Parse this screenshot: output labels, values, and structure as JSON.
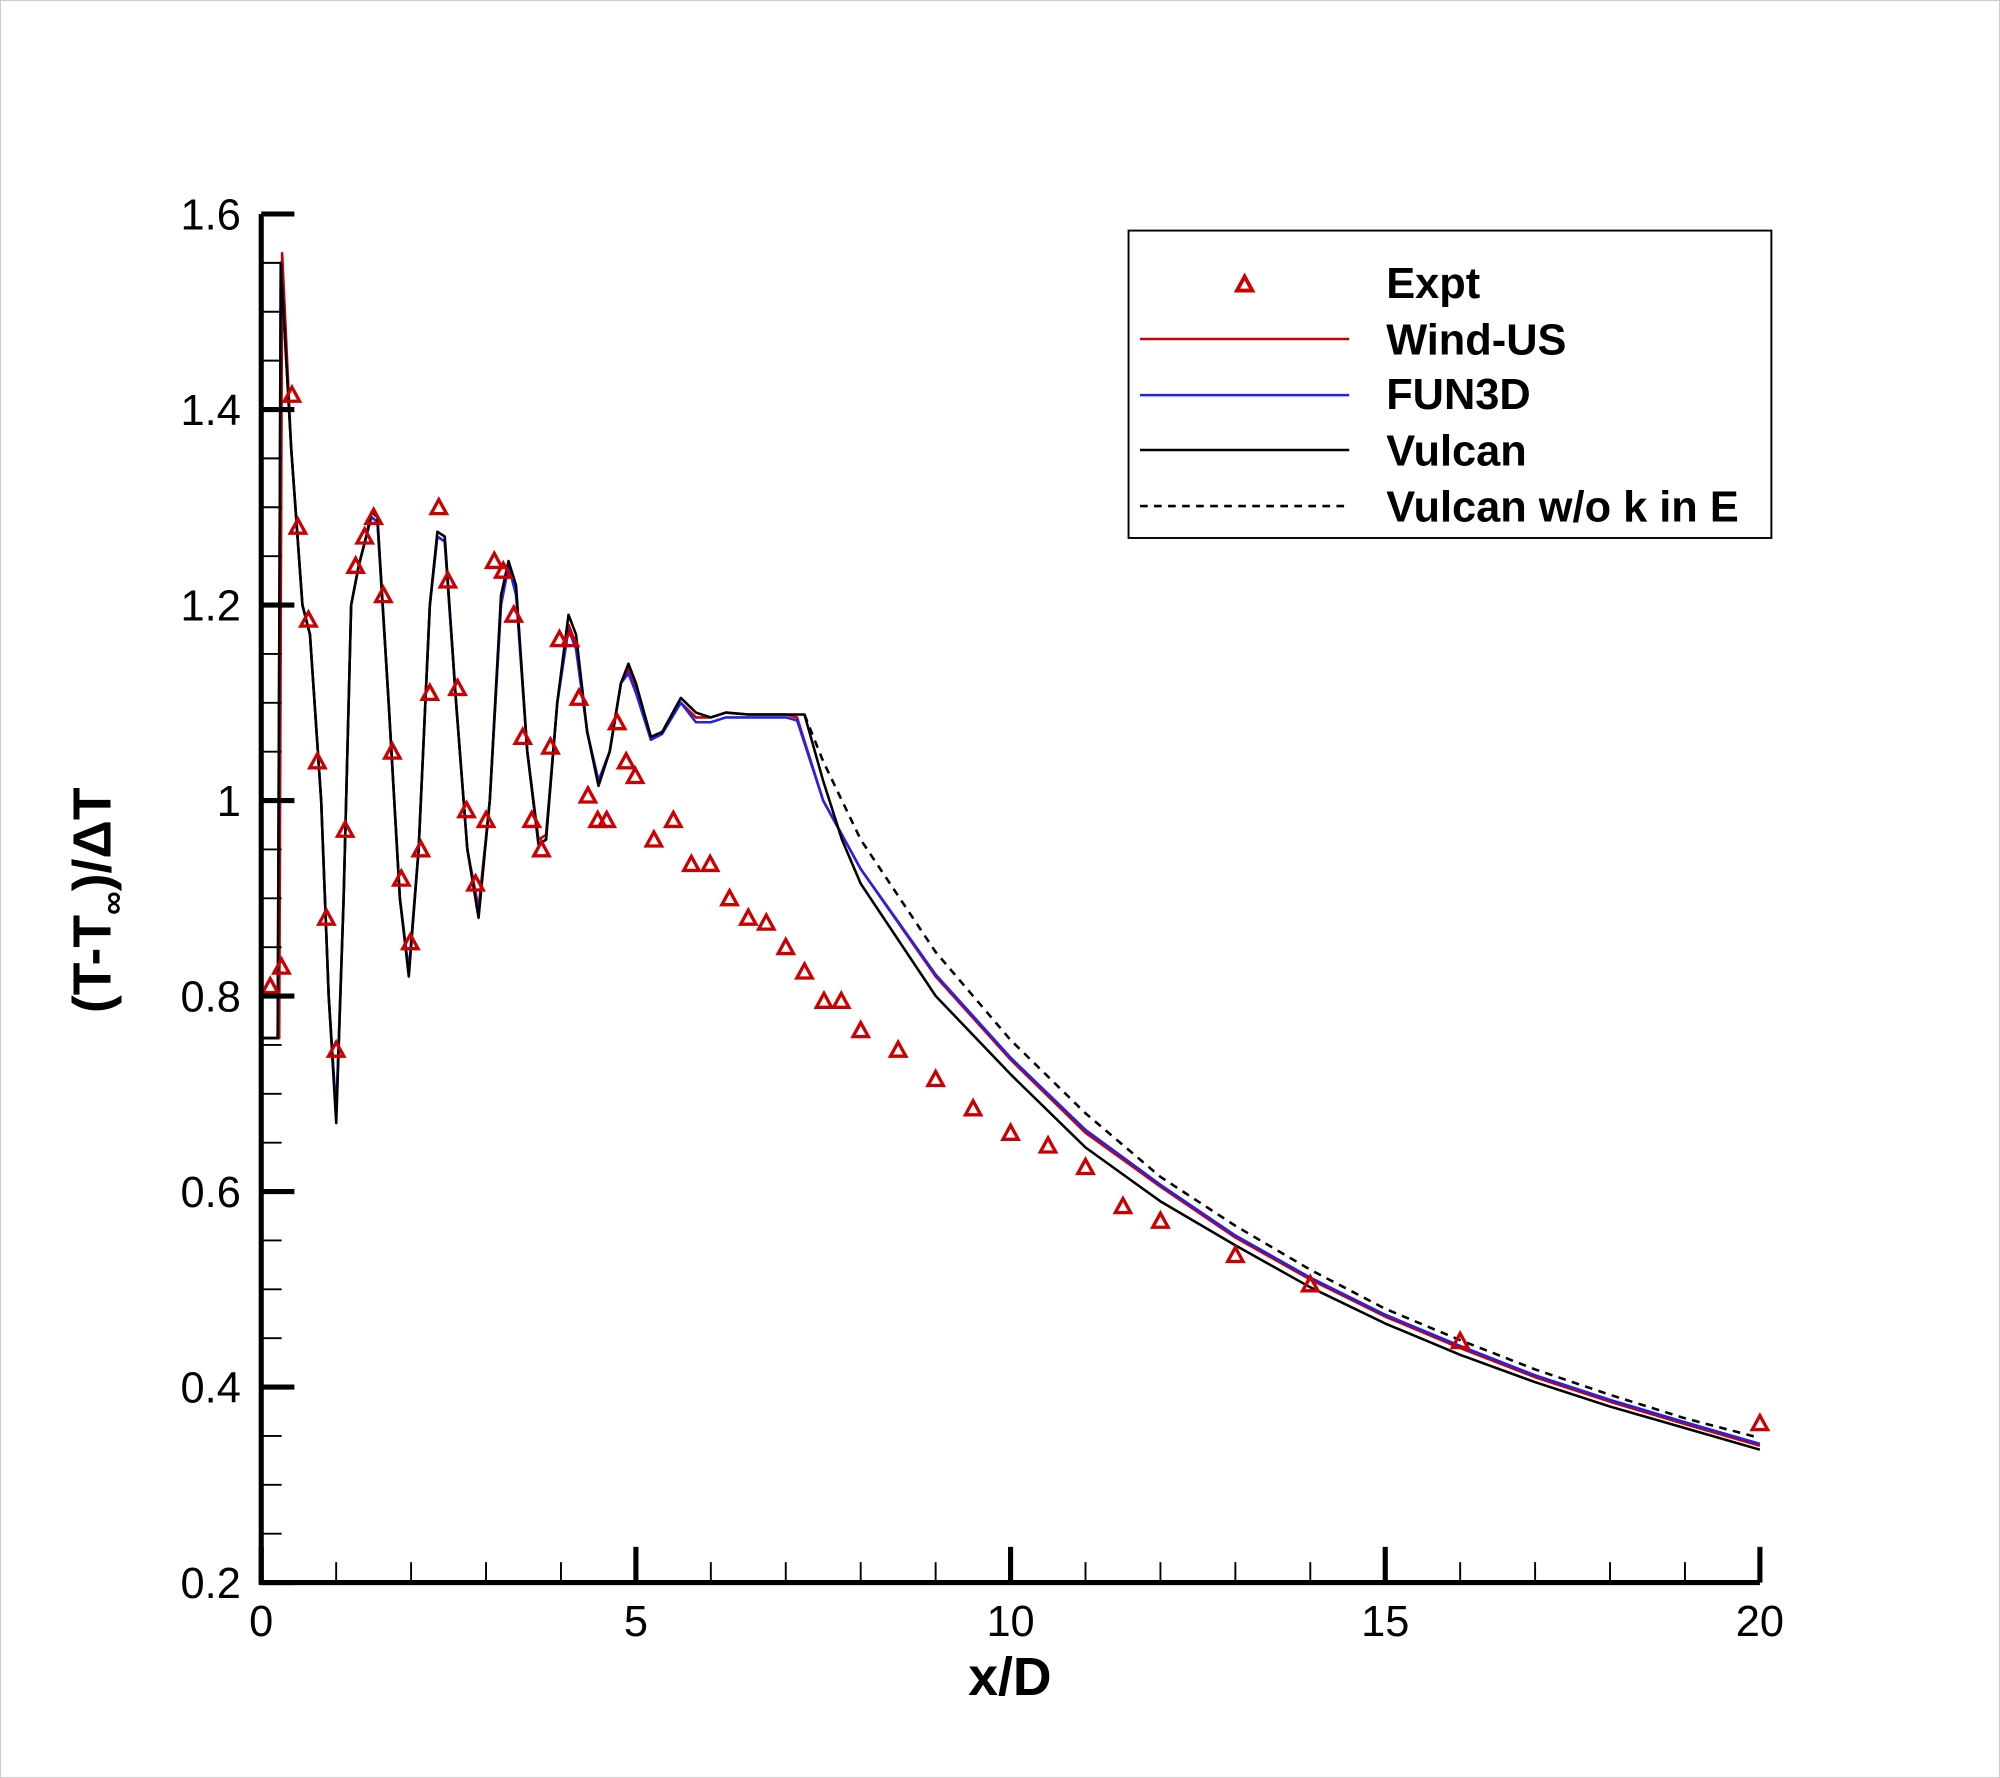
{
  "chart_data": {
    "type": "line",
    "xlabel": "x/D",
    "ylabel_main": "(T-T",
    "ylabel_sub": "∞",
    "ylabel_tail": ")/ΔT",
    "xlim": [
      0,
      20
    ],
    "ylim": [
      0.2,
      1.6
    ],
    "x_ticks": [
      "0",
      "5",
      "10",
      "15",
      "20"
    ],
    "y_ticks": [
      "0.2",
      "0.4",
      "0.6",
      "0.8",
      "1",
      "1.2",
      "1.4",
      "1.6"
    ],
    "grid": false,
    "legend_position": "top-right",
    "series": [
      {
        "name": "Expt",
        "kind": "scatter",
        "marker": "triangle",
        "color": "#cc0000",
        "x": [
          0.12,
          0.27,
          0.41,
          0.49,
          0.63,
          0.75,
          0.87,
          1.0,
          1.12,
          1.26,
          1.38,
          1.5,
          1.63,
          1.75,
          1.87,
          1.99,
          2.13,
          2.25,
          2.37,
          2.49,
          2.62,
          2.74,
          2.86,
          3.0,
          3.11,
          3.23,
          3.37,
          3.49,
          3.61,
          3.74,
          3.86,
          3.98,
          4.12,
          4.24,
          4.36,
          4.49,
          4.61,
          4.75,
          4.87,
          4.99,
          5.24,
          5.5,
          5.74,
          5.99,
          6.25,
          6.5,
          6.74,
          7.0,
          7.25,
          7.51,
          7.74,
          8.0,
          8.5,
          9.0,
          9.5,
          10.0,
          10.5,
          11.0,
          11.5,
          12.0,
          13.0,
          14.0,
          16.0,
          20.0
        ],
        "y": [
          0.81,
          0.83,
          1.415,
          1.28,
          1.185,
          1.04,
          0.88,
          0.745,
          0.97,
          1.24,
          1.27,
          1.29,
          1.21,
          1.05,
          0.92,
          0.855,
          0.95,
          1.11,
          1.3,
          1.225,
          1.115,
          0.99,
          0.915,
          0.98,
          1.245,
          1.235,
          1.19,
          1.065,
          0.98,
          0.95,
          1.055,
          1.165,
          1.165,
          1.105,
          1.005,
          0.98,
          0.98,
          1.08,
          1.04,
          1.025,
          0.96,
          0.98,
          0.935,
          0.935,
          0.9,
          0.88,
          0.875,
          0.85,
          0.825,
          0.795,
          0.795,
          0.765,
          0.745,
          0.715,
          0.685,
          0.66,
          0.647,
          0.625,
          0.585,
          0.57,
          0.535,
          0.505,
          0.447,
          0.363
        ]
      },
      {
        "name": "Wind-US",
        "kind": "line",
        "color": "#cc0000",
        "dash": false,
        "x": [
          0,
          0.24,
          0.28,
          0.4,
          0.55,
          0.65,
          0.8,
          0.9,
          1.0,
          1.1,
          1.2,
          1.3,
          1.4,
          1.47,
          1.55,
          1.7,
          1.85,
          1.97,
          2.1,
          2.25,
          2.35,
          2.45,
          2.6,
          2.75,
          2.9,
          3.05,
          3.2,
          3.3,
          3.4,
          3.55,
          3.7,
          3.8,
          3.95,
          4.1,
          4.2,
          4.35,
          4.5,
          4.65,
          4.8,
          4.9,
          5.0,
          5.2,
          5.35,
          5.6,
          5.8,
          6.0,
          6.2,
          6.5,
          7.0,
          7.15,
          7.5,
          8,
          9,
          10,
          11,
          12,
          13,
          14,
          15,
          16,
          17,
          18,
          19,
          20
        ],
        "y": [
          0.757,
          0.757,
          1.56,
          1.36,
          1.2,
          1.17,
          1.0,
          0.8,
          0.68,
          0.9,
          1.2,
          1.24,
          1.27,
          1.29,
          1.285,
          1.1,
          0.9,
          0.825,
          0.95,
          1.2,
          1.27,
          1.265,
          1.1,
          0.95,
          0.89,
          1.0,
          1.2,
          1.24,
          1.215,
          1.05,
          0.96,
          0.965,
          1.1,
          1.18,
          1.16,
          1.07,
          1.02,
          1.05,
          1.12,
          1.135,
          1.115,
          1.065,
          1.07,
          1.1,
          1.085,
          1.085,
          1.09,
          1.088,
          1.088,
          1.085,
          1.0,
          0.93,
          0.82,
          0.735,
          0.66,
          0.605,
          0.553,
          0.51,
          0.472,
          0.44,
          0.41,
          0.385,
          0.362,
          0.34
        ]
      },
      {
        "name": "FUN3D",
        "kind": "line",
        "color": "#2222ee",
        "dash": false,
        "x": [
          0,
          0.22,
          0.26,
          0.4,
          0.55,
          0.65,
          0.8,
          0.9,
          1.0,
          1.1,
          1.2,
          1.3,
          1.4,
          1.47,
          1.55,
          1.7,
          1.85,
          1.97,
          2.1,
          2.25,
          2.35,
          2.45,
          2.6,
          2.75,
          2.9,
          3.05,
          3.2,
          3.3,
          3.4,
          3.55,
          3.7,
          3.8,
          3.95,
          4.1,
          4.2,
          4.35,
          4.5,
          4.65,
          4.8,
          4.9,
          5.0,
          5.2,
          5.35,
          5.6,
          5.8,
          6.0,
          6.2,
          6.5,
          7.0,
          7.15,
          7.5,
          8,
          9,
          10,
          11,
          12,
          13,
          14,
          15,
          16,
          17,
          18,
          19,
          20
        ],
        "y": [
          0.757,
          0.757,
          1.55,
          1.36,
          1.2,
          1.17,
          1.0,
          0.8,
          0.68,
          0.9,
          1.2,
          1.24,
          1.27,
          1.29,
          1.285,
          1.1,
          0.9,
          0.825,
          0.95,
          1.2,
          1.27,
          1.265,
          1.1,
          0.95,
          0.885,
          1.0,
          1.2,
          1.24,
          1.21,
          1.05,
          0.955,
          0.96,
          1.1,
          1.175,
          1.155,
          1.07,
          1.02,
          1.05,
          1.12,
          1.13,
          1.11,
          1.062,
          1.068,
          1.1,
          1.08,
          1.08,
          1.085,
          1.085,
          1.085,
          1.082,
          1.0,
          0.93,
          0.822,
          0.737,
          0.663,
          0.607,
          0.555,
          0.512,
          0.474,
          0.442,
          0.412,
          0.387,
          0.364,
          0.342
        ]
      },
      {
        "name": "Vulcan",
        "kind": "line",
        "color": "#000000",
        "dash": false,
        "x": [
          0,
          0.22,
          0.26,
          0.4,
          0.55,
          0.65,
          0.8,
          0.9,
          1.0,
          1.1,
          1.2,
          1.3,
          1.4,
          1.47,
          1.55,
          1.7,
          1.85,
          1.97,
          2.1,
          2.25,
          2.35,
          2.45,
          2.6,
          2.75,
          2.9,
          3.05,
          3.2,
          3.3,
          3.4,
          3.55,
          3.7,
          3.8,
          3.95,
          4.1,
          4.2,
          4.35,
          4.5,
          4.65,
          4.8,
          4.9,
          5.0,
          5.2,
          5.35,
          5.6,
          5.8,
          6.0,
          6.2,
          6.5,
          7.0,
          7.25,
          7.5,
          7.75,
          8,
          9,
          10,
          11,
          12,
          13,
          14,
          15,
          16,
          17,
          18,
          19,
          20
        ],
        "y": [
          0.757,
          0.757,
          1.55,
          1.36,
          1.2,
          1.17,
          1.0,
          0.8,
          0.67,
          0.9,
          1.2,
          1.24,
          1.27,
          1.295,
          1.29,
          1.1,
          0.9,
          0.82,
          0.95,
          1.2,
          1.275,
          1.27,
          1.1,
          0.95,
          0.88,
          1.0,
          1.21,
          1.245,
          1.22,
          1.05,
          0.955,
          0.96,
          1.1,
          1.19,
          1.17,
          1.07,
          1.015,
          1.05,
          1.12,
          1.14,
          1.12,
          1.065,
          1.07,
          1.105,
          1.09,
          1.085,
          1.09,
          1.088,
          1.088,
          1.088,
          1.02,
          0.96,
          0.915,
          0.8,
          0.72,
          0.645,
          0.59,
          0.545,
          0.502,
          0.465,
          0.433,
          0.405,
          0.38,
          0.358,
          0.336
        ]
      },
      {
        "name": "Vulcan w/o k in E",
        "kind": "line",
        "color": "#000000",
        "dash": true,
        "x": [
          7.25,
          7.5,
          8,
          9,
          10,
          11,
          12,
          13,
          14,
          15,
          16,
          17,
          18,
          19,
          20
        ],
        "y": [
          1.088,
          1.04,
          0.96,
          0.845,
          0.755,
          0.68,
          0.615,
          0.565,
          0.52,
          0.48,
          0.448,
          0.418,
          0.392,
          0.368,
          0.348
        ]
      }
    ]
  }
}
